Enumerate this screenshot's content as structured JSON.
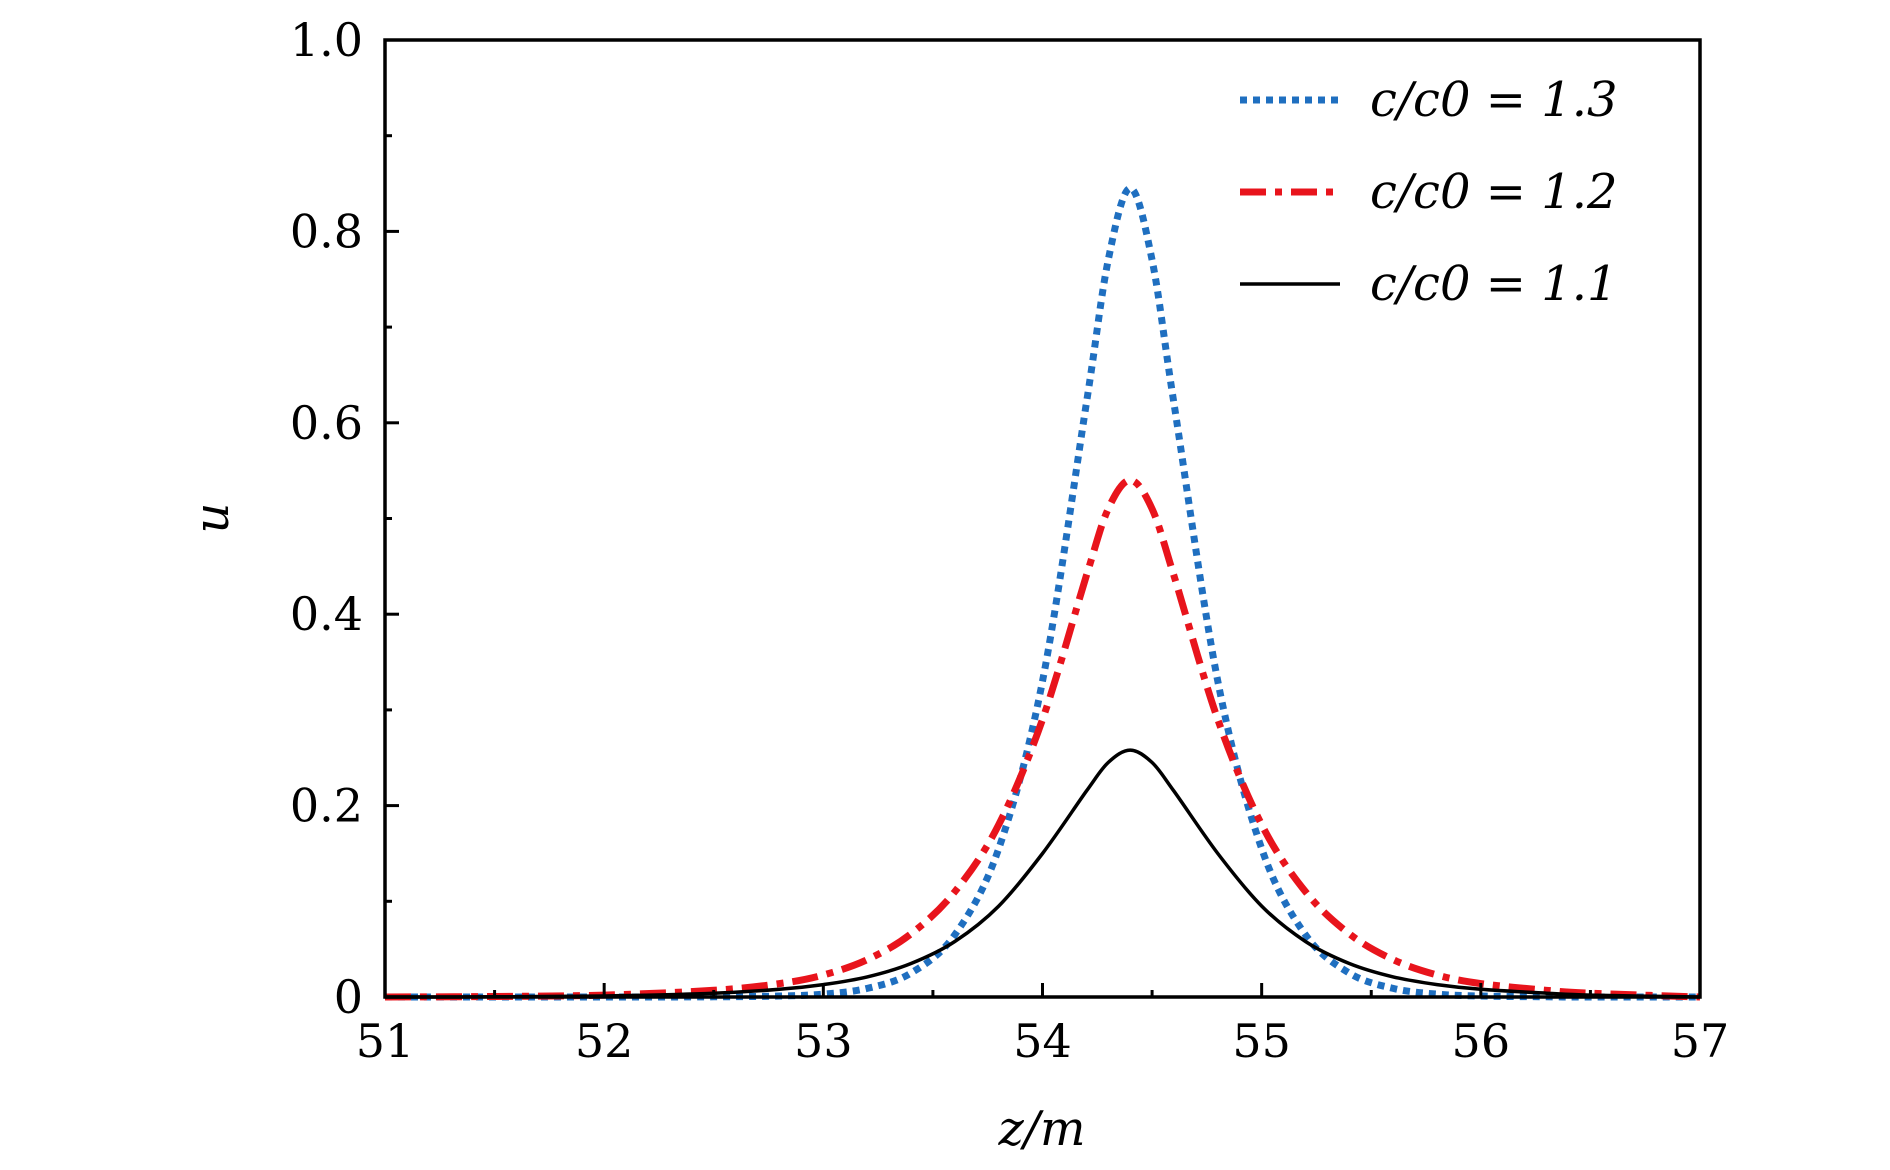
{
  "chart_data": {
    "type": "line",
    "title": "",
    "xlabel": "z/m",
    "ylabel": "u",
    "xlim": [
      51,
      57
    ],
    "ylim": [
      0,
      1.0
    ],
    "x_ticks": [
      51,
      52,
      53,
      54,
      55,
      56,
      57
    ],
    "x_tick_labels": [
      "51",
      "52",
      "53",
      "54",
      "55",
      "56",
      "57"
    ],
    "y_ticks": [
      0,
      0.2,
      0.4,
      0.6,
      0.8,
      1.0
    ],
    "y_tick_labels": [
      "0",
      "0.2",
      "0.4",
      "0.6",
      "0.8",
      "1.0"
    ],
    "grid": false,
    "legend_position": "top-right",
    "x": [
      51.0,
      51.5,
      52.0,
      52.5,
      52.8,
      53.0,
      53.2,
      53.4,
      53.6,
      53.8,
      54.0,
      54.2,
      54.3,
      54.4,
      54.5,
      54.6,
      54.8,
      55.0,
      55.2,
      55.4,
      55.6,
      55.8,
      56.0,
      56.3,
      56.5,
      57.0
    ],
    "series": [
      {
        "name": "c/c0 = 1.3",
        "color": "#1f6fc0",
        "style": "dotted",
        "values": [
          0,
          0,
          0,
          0.0002,
          0.001,
          0.003,
          0.009,
          0.025,
          0.065,
          0.155,
          0.33,
          0.62,
          0.77,
          0.845,
          0.77,
          0.62,
          0.33,
          0.155,
          0.065,
          0.025,
          0.009,
          0.003,
          0.001,
          0.0002,
          0,
          0
        ]
      },
      {
        "name": "c/c0 = 1.2",
        "color": "#e8141c",
        "style": "dash-dot",
        "values": [
          0,
          0.0005,
          0.002,
          0.007,
          0.014,
          0.023,
          0.039,
          0.066,
          0.11,
          0.18,
          0.29,
          0.44,
          0.51,
          0.54,
          0.51,
          0.44,
          0.29,
          0.18,
          0.11,
          0.066,
          0.039,
          0.023,
          0.014,
          0.007,
          0.004,
          0
        ]
      },
      {
        "name": "c/c0 = 1.1",
        "color": "#000000",
        "style": "solid",
        "values": [
          0,
          0.0002,
          0.001,
          0.004,
          0.008,
          0.013,
          0.021,
          0.035,
          0.058,
          0.095,
          0.15,
          0.215,
          0.245,
          0.258,
          0.245,
          0.215,
          0.15,
          0.095,
          0.058,
          0.035,
          0.021,
          0.013,
          0.008,
          0.004,
          0.002,
          0
        ]
      }
    ]
  }
}
